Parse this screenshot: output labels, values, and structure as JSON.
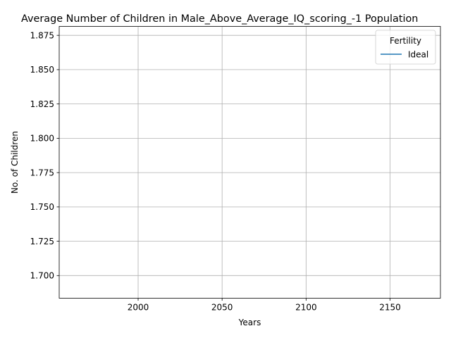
{
  "chart_data": {
    "type": "line",
    "title": "Average Number of Children in Male_Above_Average_IQ_scoring_-1 Population",
    "xlabel": "Years",
    "ylabel": "No. of Children",
    "xlim": [
      1953,
      2180
    ],
    "ylim": [
      1.6835,
      1.8815
    ],
    "x_ticks": [
      2000,
      2050,
      2100,
      2150
    ],
    "y_ticks": [
      1.7,
      1.725,
      1.75,
      1.775,
      1.8,
      1.825,
      1.85,
      1.875
    ],
    "y_tick_labels": [
      "1.700",
      "1.725",
      "1.750",
      "1.775",
      "1.800",
      "1.825",
      "1.850",
      "1.875"
    ],
    "grid": true,
    "legend": {
      "title": "Fertility",
      "position": "top-right",
      "entries": [
        {
          "label": "Ideal",
          "color": "#1f77b4"
        }
      ]
    },
    "series": [
      {
        "name": "Ideal",
        "color": "#1f77b4",
        "x": [],
        "y": []
      }
    ]
  }
}
